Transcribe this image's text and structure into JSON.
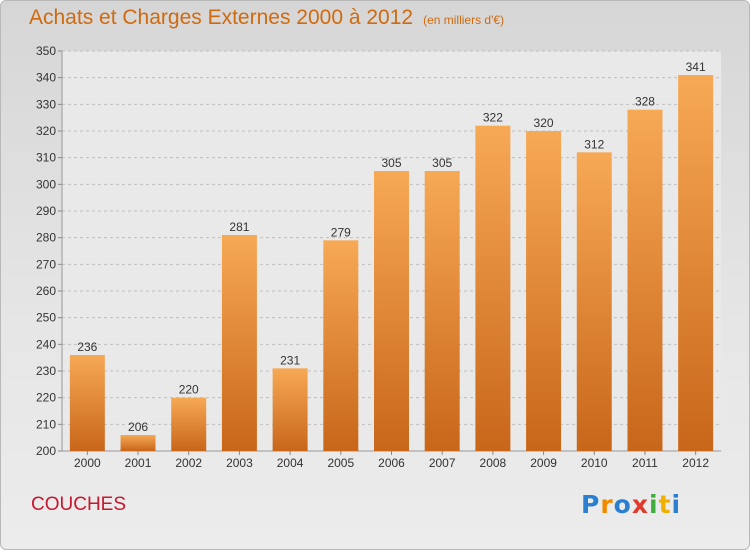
{
  "header": {
    "title": "Achats et Charges Externes 2000 à 2012",
    "unit": "(en milliers d'€)"
  },
  "footer": {
    "place": "COUCHES",
    "logo_text": "Proxiti",
    "logo_colors": [
      "#2a7fd0",
      "#f08a00",
      "#2a7fd0",
      "#e23a2a",
      "#3fae3a",
      "#f0b000",
      "#2a7fd0"
    ]
  },
  "colors": {
    "bar_top": "#f7a955",
    "bar_bottom": "#c8661a",
    "grid": "#bfbfbf",
    "axis_text": "#333333",
    "title": "#d06a0e",
    "place": "#c8182f"
  },
  "chart_data": {
    "type": "bar",
    "title": "Achats et Charges Externes 2000 à 2012",
    "subtitle": "(en milliers d'€)",
    "categories": [
      "2000",
      "2001",
      "2002",
      "2003",
      "2004",
      "2005",
      "2006",
      "2007",
      "2008",
      "2009",
      "2010",
      "2011",
      "2012"
    ],
    "values": [
      236,
      206,
      220,
      281,
      231,
      279,
      305,
      305,
      322,
      320,
      312,
      328,
      341
    ],
    "value_labels": [
      "236",
      "206",
      "220",
      "281",
      "231",
      "279",
      "305",
      "305",
      "322",
      "320",
      "312",
      "328",
      "341"
    ],
    "ylim": [
      200,
      350
    ],
    "yticks": [
      "200",
      "210",
      "220",
      "230",
      "240",
      "250",
      "260",
      "270",
      "280",
      "290",
      "300",
      "310",
      "320",
      "330",
      "340",
      "350"
    ],
    "grid": true,
    "legend": "none"
  }
}
